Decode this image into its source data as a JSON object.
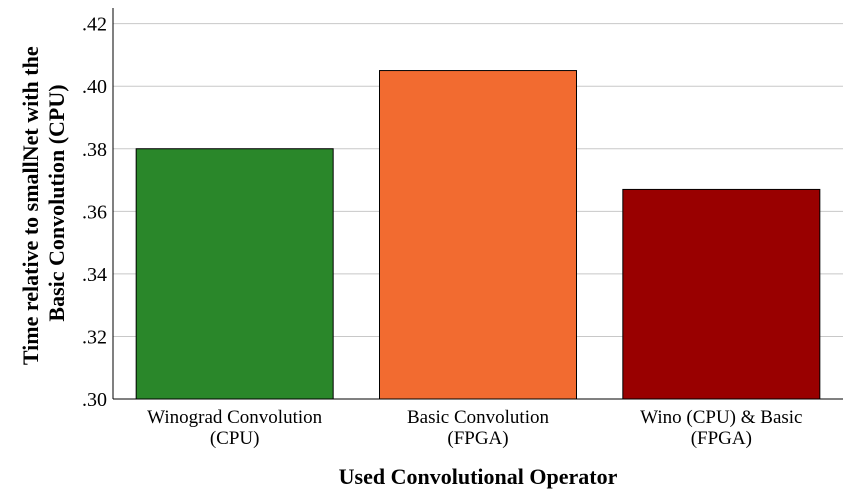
{
  "chart_data": {
    "type": "bar",
    "categories": [
      [
        "Winograd Convolution",
        "(CPU)"
      ],
      [
        "Basic Convolution",
        "(FPGA)"
      ],
      [
        "Wino (CPU) & Basic",
        "(FPGA)"
      ]
    ],
    "values": [
      0.38,
      0.405,
      0.367
    ],
    "colors": [
      "#2a872a",
      "#f26b30",
      "#990000"
    ],
    "xlabel": "Used Convolutional Operator",
    "ylabel": [
      "Time relative to smallNet with the",
      "Basic Convolution (CPU)"
    ],
    "ylim": [
      0.3,
      0.425
    ],
    "yticks": [
      0.3,
      0.32,
      0.34,
      0.36,
      0.38,
      0.4,
      0.42
    ],
    "ytick_labels": [
      ".30",
      ".32",
      ".34",
      ".36",
      ".38",
      ".40",
      ".42"
    ],
    "grid": true
  }
}
